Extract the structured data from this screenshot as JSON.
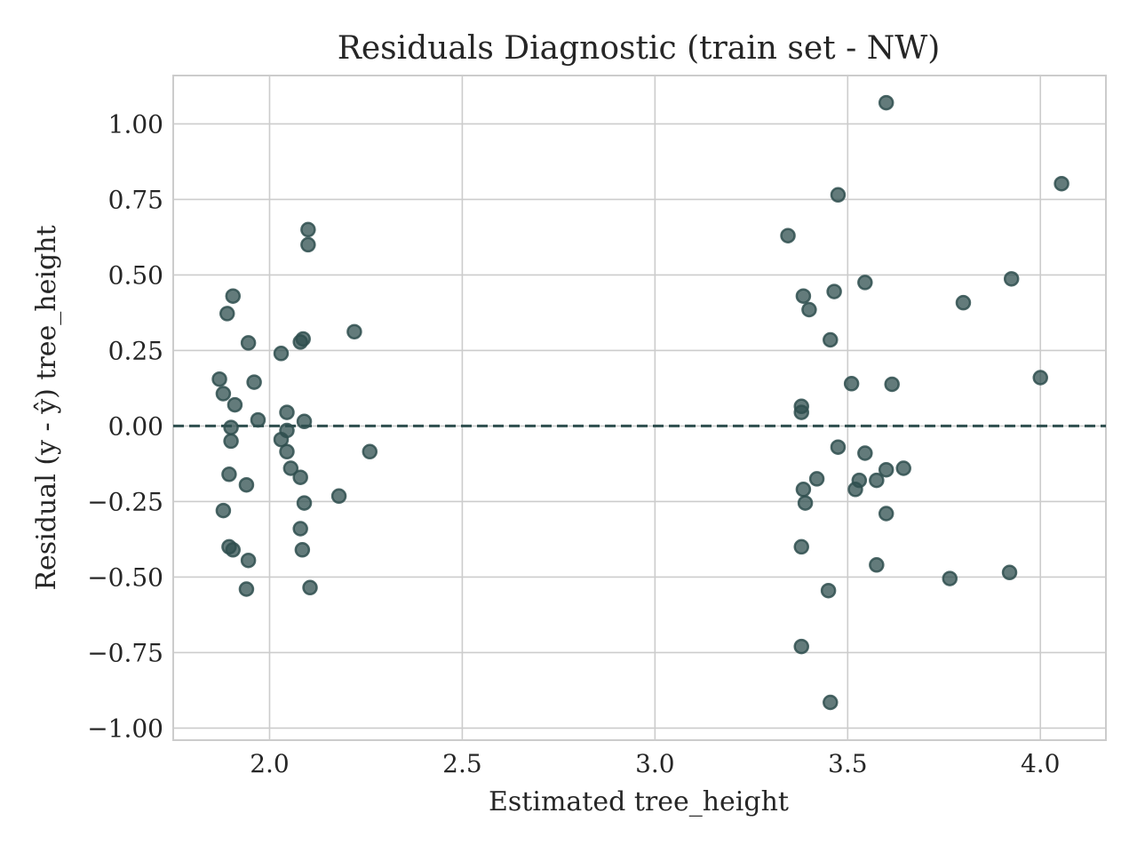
{
  "chart_data": {
    "type": "scatter",
    "title": "Residuals Diagnostic (train set - NW)",
    "xlabel": "Estimated tree_height",
    "ylabel": "Residual (y - ŷ) tree_height",
    "xlim": [
      1.75,
      4.17
    ],
    "ylim": [
      -1.04,
      1.16
    ],
    "x_ticks": [
      2.0,
      2.5,
      3.0,
      3.5,
      4.0
    ],
    "x_tick_labels": [
      "2.0",
      "2.5",
      "3.0",
      "3.5",
      "4.0"
    ],
    "y_ticks": [
      1.0,
      0.75,
      0.5,
      0.25,
      0.0,
      -0.25,
      -0.5,
      -0.75,
      -1.0
    ],
    "y_tick_labels": [
      "1.00",
      "0.75",
      "0.50",
      "0.25",
      "0.00",
      "−0.25",
      "−0.50",
      "−0.75",
      "−1.00"
    ],
    "grid": true,
    "reference_line": {
      "y": 0.0,
      "style": "dashed",
      "color": "#2f4f4f"
    },
    "marker_color": "#2f4f4f",
    "marker_opacity": 0.75,
    "points": [
      [
        1.87,
        0.155
      ],
      [
        1.88,
        0.107
      ],
      [
        1.91,
        0.07
      ],
      [
        1.9,
        -0.005
      ],
      [
        1.9,
        -0.05
      ],
      [
        1.89,
        0.372
      ],
      [
        1.905,
        0.43
      ],
      [
        1.945,
        0.275
      ],
      [
        1.96,
        0.145
      ],
      [
        1.97,
        0.02
      ],
      [
        1.88,
        -0.28
      ],
      [
        1.895,
        -0.16
      ],
      [
        1.94,
        -0.195
      ],
      [
        1.895,
        -0.4
      ],
      [
        1.905,
        -0.41
      ],
      [
        1.945,
        -0.445
      ],
      [
        1.94,
        -0.54
      ],
      [
        2.03,
        0.24
      ],
      [
        2.045,
        0.045
      ],
      [
        2.045,
        -0.015
      ],
      [
        2.03,
        -0.045
      ],
      [
        2.045,
        -0.085
      ],
      [
        2.055,
        -0.14
      ],
      [
        2.08,
        -0.17
      ],
      [
        2.09,
        -0.255
      ],
      [
        2.08,
        -0.34
      ],
      [
        2.085,
        -0.41
      ],
      [
        2.105,
        -0.535
      ],
      [
        2.08,
        0.278
      ],
      [
        2.087,
        0.288
      ],
      [
        2.09,
        0.015
      ],
      [
        2.1,
        0.65
      ],
      [
        2.1,
        0.6
      ],
      [
        2.18,
        -0.232
      ],
      [
        2.22,
        0.312
      ],
      [
        2.26,
        -0.085
      ],
      [
        3.345,
        0.63
      ],
      [
        3.38,
        0.065
      ],
      [
        3.38,
        0.045
      ],
      [
        3.385,
        0.43
      ],
      [
        3.4,
        0.385
      ],
      [
        3.385,
        -0.21
      ],
      [
        3.39,
        -0.255
      ],
      [
        3.42,
        -0.175
      ],
      [
        3.38,
        -0.4
      ],
      [
        3.38,
        -0.73
      ],
      [
        3.45,
        -0.545
      ],
      [
        3.455,
        -0.915
      ],
      [
        3.455,
        0.285
      ],
      [
        3.465,
        0.445
      ],
      [
        3.475,
        0.765
      ],
      [
        3.475,
        -0.07
      ],
      [
        3.51,
        0.14
      ],
      [
        3.52,
        -0.21
      ],
      [
        3.53,
        -0.18
      ],
      [
        3.545,
        -0.09
      ],
      [
        3.545,
        0.475
      ],
      [
        3.575,
        -0.18
      ],
      [
        3.575,
        -0.46
      ],
      [
        3.6,
        -0.145
      ],
      [
        3.6,
        -0.29
      ],
      [
        3.6,
        1.07
      ],
      [
        3.615,
        0.138
      ],
      [
        3.645,
        -0.14
      ],
      [
        3.765,
        -0.505
      ],
      [
        3.8,
        0.408
      ],
      [
        3.92,
        -0.485
      ],
      [
        3.925,
        0.487
      ],
      [
        4.0,
        0.16
      ],
      [
        4.055,
        0.802
      ]
    ]
  }
}
